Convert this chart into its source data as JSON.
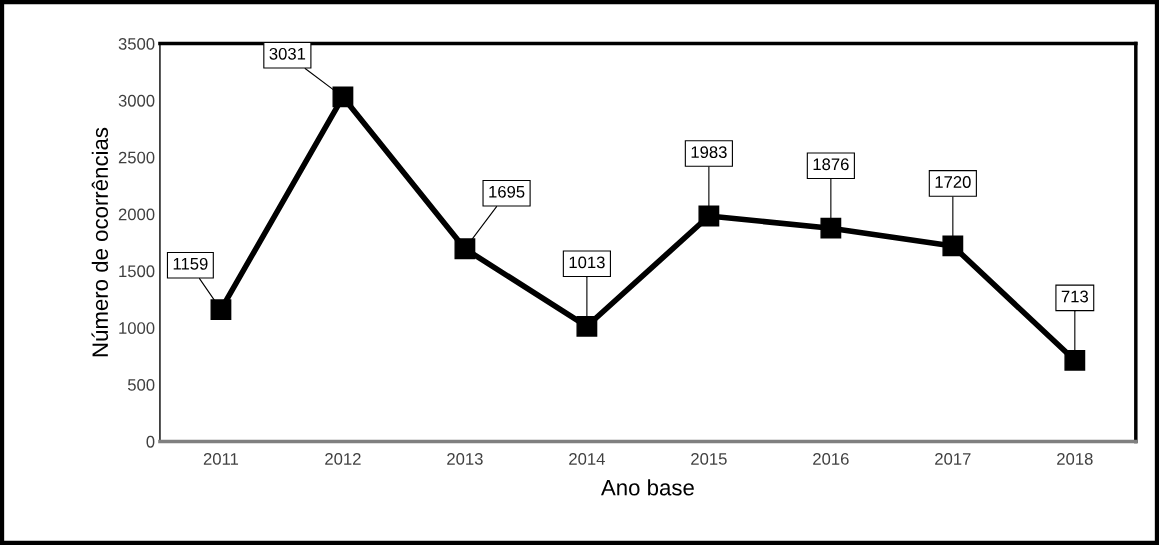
{
  "chart_data": {
    "type": "line",
    "xlabel": "Ano base",
    "ylabel": "Número de ocorrências",
    "categories": [
      "2011",
      "2012",
      "2013",
      "2014",
      "2015",
      "2016",
      "2017",
      "2018"
    ],
    "series": [
      {
        "color": "#000000",
        "values": [
          1159,
          3031,
          1695,
          1013,
          1983,
          1876,
          1720,
          713
        ]
      }
    ],
    "ylim": [
      0,
      3500
    ],
    "yticks": [
      0,
      500,
      1000,
      1500,
      2000,
      2500,
      3000,
      3500
    ],
    "marker": "square",
    "line_style": "solid",
    "grid": false,
    "data_labels": true
  }
}
